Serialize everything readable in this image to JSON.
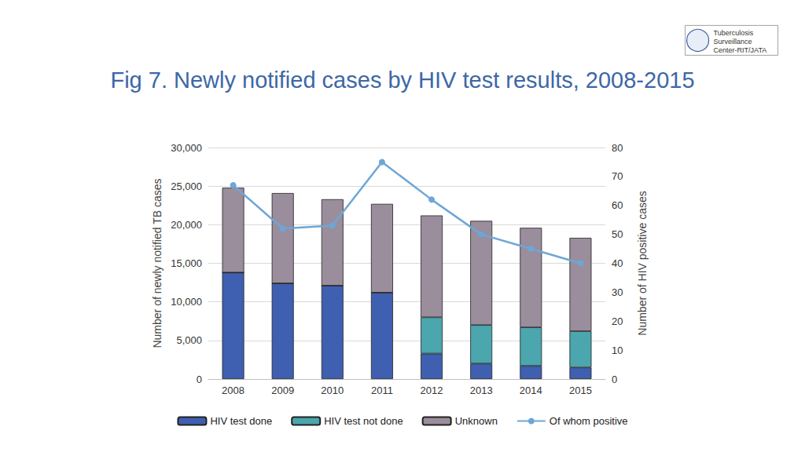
{
  "chart_data": {
    "type": "bar",
    "title": "Fig 7. Newly notified cases by HIV test results, 2008-2015",
    "annotations": [
      "Tuberculosis\nSurveillance\nCenter-RIT/JATA"
    ],
    "categories": [
      "2008",
      "2009",
      "2010",
      "2011",
      "2012",
      "2013",
      "2014",
      "2015"
    ],
    "series": [
      {
        "name": "HIV test done",
        "type": "bar",
        "color": "#3f5fb0",
        "values": [
          13800,
          12400,
          12100,
          11200,
          3300,
          2000,
          1700,
          1500
        ]
      },
      {
        "name": "HIV test not done",
        "type": "bar",
        "color": "#4ba6ad",
        "values": [
          0,
          0,
          0,
          0,
          4700,
          5000,
          5000,
          4700
        ]
      },
      {
        "name": "Unknown",
        "type": "bar",
        "color": "#9a8d9c",
        "values": [
          11000,
          11700,
          11200,
          11500,
          13200,
          13500,
          12900,
          12100
        ]
      },
      {
        "name": "Of whom positive",
        "type": "line",
        "axis": "y2",
        "color": "#6ea6d6",
        "marker": "circle",
        "values": [
          67,
          52,
          53,
          75,
          62,
          50,
          45,
          40
        ]
      }
    ],
    "stacked": true,
    "ylabel": "Number of newly notified TB cases",
    "y2label": "Number of HIV positive cases",
    "ylim": [
      0,
      30000
    ],
    "yticks": [
      0,
      {
        "value": 5000,
        "label": "5,000"
      },
      {
        "value": 10000,
        "label": "10,000"
      },
      {
        "value": 15000,
        "label": "15,000"
      },
      {
        "value": 20000,
        "label": "20,000"
      },
      {
        "value": 25000,
        "label": "25,000"
      },
      {
        "value": 30000,
        "label": "30,000"
      }
    ],
    "y2lim": [
      0,
      80
    ],
    "y2ticks": [
      0,
      10,
      20,
      30,
      40,
      50,
      60,
      70,
      80
    ],
    "grid": true,
    "legend": "bottom"
  }
}
